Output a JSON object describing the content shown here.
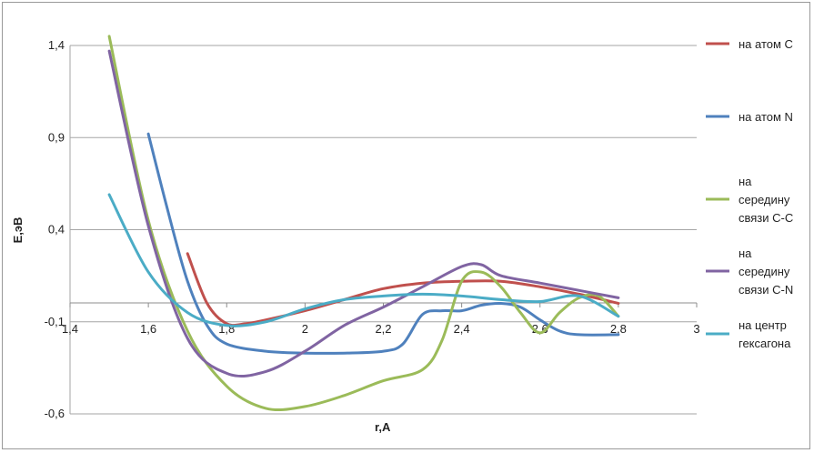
{
  "chart_data": {
    "type": "line",
    "title": "",
    "xlabel": "r,A",
    "ylabel": "E,эВ",
    "xlim": [
      1.4,
      3
    ],
    "ylim": [
      -0.6,
      1.4
    ],
    "x_ticks": [
      "1,4",
      "1,6",
      "1,8",
      "2",
      "2,2",
      "2,4",
      "2,6",
      "2,8",
      "3"
    ],
    "y_ticks": [
      "1,4",
      "0,9",
      "0,4",
      "-0,1",
      "-0,6"
    ],
    "grid": "horizontal",
    "legend_position": "right",
    "series": [
      {
        "name": "на атом C",
        "color": "#c0504d",
        "legend_lines": [
          "на атом C"
        ],
        "x": [
          1.7,
          1.75,
          1.8,
          1.85,
          1.9,
          2.0,
          2.1,
          2.2,
          2.3,
          2.4,
          2.5,
          2.6,
          2.7,
          2.8
        ],
        "y": [
          0.27,
          0.0,
          -0.11,
          -0.11,
          -0.09,
          -0.04,
          0.02,
          0.08,
          0.11,
          0.12,
          0.12,
          0.09,
          0.05,
          0.0
        ]
      },
      {
        "name": "на атом N",
        "color": "#4f81bd",
        "legend_lines": [
          "на атом N"
        ],
        "x": [
          1.6,
          1.65,
          1.7,
          1.75,
          1.8,
          1.9,
          2.0,
          2.1,
          2.2,
          2.25,
          2.3,
          2.35,
          2.4,
          2.45,
          2.5,
          2.55,
          2.6,
          2.65,
          2.7,
          2.8
        ],
        "y": [
          0.92,
          0.5,
          0.12,
          -0.12,
          -0.22,
          -0.26,
          -0.27,
          -0.27,
          -0.26,
          -0.22,
          -0.06,
          -0.04,
          -0.04,
          -0.01,
          0.0,
          -0.02,
          -0.09,
          -0.15,
          -0.17,
          -0.17
        ]
      },
      {
        "name": "на середину связи C-C",
        "color": "#9bbb59",
        "legend_lines": [
          "на",
          "середину",
          "связи C-C"
        ],
        "x": [
          1.5,
          1.6,
          1.7,
          1.8,
          1.9,
          2.0,
          2.1,
          2.2,
          2.3,
          2.35,
          2.4,
          2.45,
          2.5,
          2.55,
          2.6,
          2.65,
          2.7,
          2.75,
          2.8
        ],
        "y": [
          1.45,
          0.45,
          -0.15,
          -0.45,
          -0.57,
          -0.56,
          -0.5,
          -0.42,
          -0.36,
          -0.2,
          0.12,
          0.17,
          0.09,
          -0.05,
          -0.16,
          -0.05,
          0.03,
          0.04,
          -0.07
        ]
      },
      {
        "name": "на середину связи C-N",
        "color": "#8064a2",
        "legend_lines": [
          "на",
          "середину",
          "связи C-N"
        ],
        "x": [
          1.5,
          1.6,
          1.7,
          1.8,
          1.9,
          2.0,
          2.1,
          2.2,
          2.3,
          2.4,
          2.45,
          2.5,
          2.6,
          2.7,
          2.8
        ],
        "y": [
          1.37,
          0.42,
          -0.19,
          -0.38,
          -0.37,
          -0.26,
          -0.12,
          -0.02,
          0.09,
          0.2,
          0.21,
          0.15,
          0.11,
          0.07,
          0.03
        ]
      },
      {
        "name": "на центр гексагона",
        "color": "#4bacc6",
        "legend_lines": [
          "на центр",
          "гексагона"
        ],
        "x": [
          1.5,
          1.6,
          1.7,
          1.8,
          1.9,
          2.0,
          2.1,
          2.2,
          2.3,
          2.4,
          2.5,
          2.6,
          2.7,
          2.8
        ],
        "y": [
          0.59,
          0.17,
          -0.05,
          -0.12,
          -0.1,
          -0.03,
          0.02,
          0.04,
          0.05,
          0.04,
          0.02,
          0.01,
          0.04,
          -0.07
        ]
      }
    ]
  }
}
